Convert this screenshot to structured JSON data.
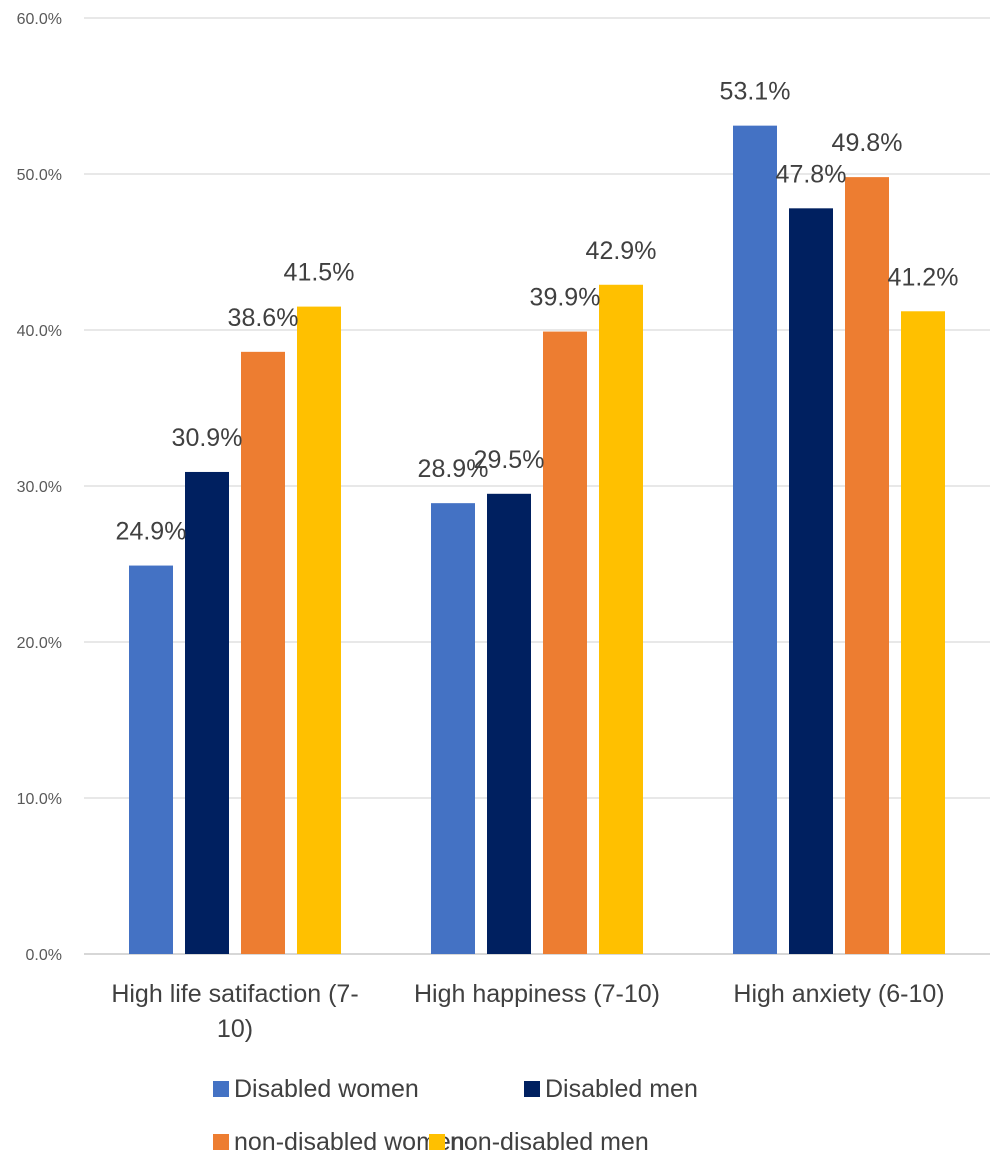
{
  "chart_data": {
    "type": "bar",
    "title": "",
    "xlabel": "",
    "ylabel": "",
    "ylim": [
      0,
      60
    ],
    "yticks": [
      0,
      10,
      20,
      30,
      40,
      50,
      60
    ],
    "ytick_labels": [
      "0.0%",
      "10.0%",
      "20.0%",
      "30.0%",
      "40.0%",
      "50.0%",
      "60.0%"
    ],
    "grid": true,
    "legend_position": "bottom",
    "categories": [
      [
        "High life satifaction (7-",
        "10)"
      ],
      [
        "High happiness (7-10)"
      ],
      [
        "High anxiety (6-10)"
      ]
    ],
    "series": [
      {
        "name": "Disabled women",
        "color": "#4472C4",
        "values": [
          24.9,
          28.9,
          53.1
        ],
        "labels": [
          "24.9%",
          "28.9%",
          "53.1%"
        ]
      },
      {
        "name": "Disabled men",
        "color": "#002060",
        "values": [
          30.9,
          29.5,
          47.8
        ],
        "labels": [
          "30.9%",
          "29.5%",
          "47.8%"
        ]
      },
      {
        "name": "non-disabled women",
        "color": "#ED7D31",
        "values": [
          38.6,
          39.9,
          49.8
        ],
        "labels": [
          "38.6%",
          "39.9%",
          "49.8%"
        ]
      },
      {
        "name": "non-disabled men",
        "color": "#FFC000",
        "values": [
          41.5,
          42.9,
          41.2
        ],
        "labels": [
          "41.5%",
          "42.9%",
          "41.2%"
        ]
      }
    ]
  }
}
